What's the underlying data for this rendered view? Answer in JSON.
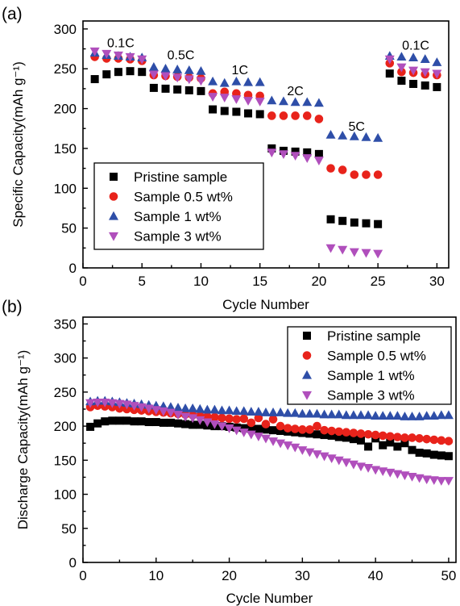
{
  "chart_data": [
    {
      "type": "scatter",
      "panel_label": "(a)",
      "xlabel": "Cycle Number",
      "ylabel": "Specific Capacity(mAh g⁻¹)",
      "xlim": [
        0,
        31
      ],
      "ylim": [
        0,
        310
      ],
      "xticks": [
        0,
        5,
        10,
        15,
        20,
        25,
        30
      ],
      "yticks": [
        0,
        50,
        100,
        150,
        200,
        250,
        300
      ],
      "legend_position": "lower-left",
      "annotations": [
        {
          "text": "0.1C",
          "x": 3.2,
          "y": 277
        },
        {
          "text": "0.5C",
          "x": 8.3,
          "y": 262
        },
        {
          "text": "1C",
          "x": 13.3,
          "y": 243
        },
        {
          "text": "2C",
          "x": 18.0,
          "y": 217
        },
        {
          "text": "5C",
          "x": 23.2,
          "y": 172
        },
        {
          "text": "0.1C",
          "x": 28.2,
          "y": 274
        }
      ],
      "x": [
        1,
        2,
        3,
        4,
        5,
        6,
        7,
        8,
        9,
        10,
        11,
        12,
        13,
        14,
        15,
        16,
        17,
        18,
        19,
        20,
        21,
        22,
        23,
        24,
        25,
        26,
        27,
        28,
        29,
        30
      ],
      "series": [
        {
          "name": "Pristine sample",
          "marker": "square",
          "color": "#000000",
          "values": [
            237,
            243,
            246,
            247,
            246,
            226,
            225,
            224,
            223,
            222,
            199,
            197,
            196,
            194,
            193,
            150,
            147,
            146,
            145,
            143,
            61,
            59,
            57,
            56,
            55,
            244,
            235,
            231,
            229,
            227
          ]
        },
        {
          "name": "Sample 0.5 wt%",
          "marker": "circle",
          "color": "#e8231b",
          "values": [
            265,
            263,
            263,
            262,
            260,
            242,
            241,
            240,
            239,
            238,
            219,
            221,
            219,
            217,
            216,
            191,
            191,
            191,
            191,
            187,
            125,
            123,
            117,
            117,
            117,
            257,
            246,
            245,
            243,
            242
          ]
        },
        {
          "name": "Sample 1 wt%",
          "marker": "triangle-up",
          "color": "#2e4ea8",
          "values": [
            270,
            267,
            266,
            265,
            264,
            252,
            250,
            249,
            248,
            247,
            234,
            232,
            234,
            233,
            233,
            210,
            209,
            208,
            208,
            207,
            167,
            166,
            165,
            164,
            163,
            266,
            265,
            264,
            262,
            258
          ]
        },
        {
          "name": "Sample 3 wt%",
          "marker": "triangle-down",
          "color": "#b04fbc",
          "values": [
            272,
            269,
            267,
            265,
            262,
            243,
            241,
            239,
            237,
            235,
            215,
            214,
            212,
            210,
            209,
            145,
            143,
            141,
            138,
            135,
            25,
            23,
            20,
            19,
            18,
            262,
            252,
            248,
            246,
            244
          ]
        }
      ]
    },
    {
      "type": "scatter",
      "panel_label": "(b)",
      "xlabel": "Cycle Number",
      "ylabel": "Discharge Capacity(mAh g⁻¹)",
      "xlim": [
        0,
        51
      ],
      "ylim": [
        0,
        360
      ],
      "xticks": [
        0,
        10,
        20,
        30,
        40,
        50
      ],
      "yticks": [
        0,
        50,
        100,
        150,
        200,
        250,
        300,
        350
      ],
      "legend_position": "top-right",
      "x": [
        1,
        2,
        3,
        4,
        5,
        6,
        7,
        8,
        9,
        10,
        11,
        12,
        13,
        14,
        15,
        16,
        17,
        18,
        19,
        20,
        21,
        22,
        23,
        24,
        25,
        26,
        27,
        28,
        29,
        30,
        31,
        32,
        33,
        34,
        35,
        36,
        37,
        38,
        39,
        40,
        41,
        42,
        43,
        44,
        45,
        46,
        47,
        48,
        49,
        50
      ],
      "series": [
        {
          "name": "Pristine sample",
          "marker": "square",
          "color": "#000000",
          "values": [
            199,
            204,
            207,
            208,
            208,
            208,
            207,
            207,
            206,
            206,
            205,
            205,
            204,
            203,
            202,
            202,
            201,
            200,
            200,
            199,
            198,
            197,
            196,
            196,
            195,
            194,
            193,
            192,
            191,
            190,
            189,
            188,
            187,
            186,
            184,
            183,
            181,
            179,
            170,
            182,
            172,
            176,
            170,
            175,
            165,
            161,
            160,
            158,
            157,
            156
          ]
        },
        {
          "name": "Sample 0.5 wt%",
          "marker": "circle",
          "color": "#e8231b",
          "values": [
            228,
            230,
            229,
            228,
            226,
            225,
            224,
            223,
            222,
            221,
            220,
            219,
            218,
            217,
            216,
            215,
            214,
            213,
            212,
            211,
            210,
            211,
            205,
            212,
            203,
            210,
            200,
            197,
            196,
            195,
            195,
            200,
            194,
            193,
            192,
            191,
            190,
            189,
            188,
            187,
            186,
            185,
            184,
            183,
            183,
            182,
            181,
            180,
            179,
            178
          ]
        },
        {
          "name": "Sample 1 wt%",
          "marker": "triangle-up",
          "color": "#2e4ea8",
          "values": [
            236,
            237,
            237,
            236,
            235,
            234,
            233,
            232,
            231,
            230,
            229,
            228,
            227,
            226,
            226,
            225,
            224,
            224,
            223,
            223,
            222,
            222,
            221,
            221,
            220,
            220,
            220,
            219,
            219,
            218,
            218,
            218,
            217,
            217,
            217,
            216,
            216,
            216,
            216,
            215,
            215,
            215,
            215,
            214,
            214,
            214,
            215,
            215,
            216,
            216
          ]
        },
        {
          "name": "Sample 3 wt%",
          "marker": "triangle-down",
          "color": "#b04fbc",
          "values": [
            234,
            235,
            235,
            234,
            233,
            232,
            230,
            228,
            226,
            224,
            222,
            220,
            217,
            214,
            212,
            209,
            206,
            203,
            200,
            197,
            194,
            191,
            188,
            185,
            182,
            178,
            175,
            172,
            169,
            165,
            162,
            159,
            156,
            153,
            150,
            147,
            144,
            141,
            139,
            136,
            134,
            132,
            130,
            128,
            126,
            124,
            122,
            121,
            120,
            120
          ]
        }
      ]
    }
  ]
}
